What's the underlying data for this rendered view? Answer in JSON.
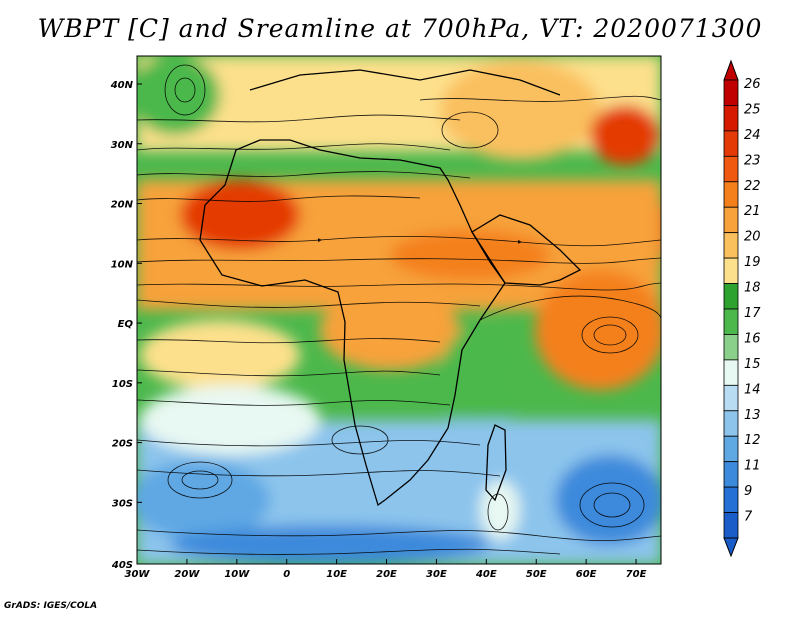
{
  "title": "WBPT [C] and Sreamline at 700hPa, VT: 2020071300",
  "credit": "GrADS: IGES/COLA",
  "map": {
    "lon_range": [
      -30,
      75
    ],
    "lat_range": [
      -40,
      45
    ],
    "lon_ticks": [
      "30W",
      "20W",
      "10W",
      "0",
      "10E",
      "20E",
      "30E",
      "40E",
      "50E",
      "60E",
      "70E"
    ],
    "lat_ticks": [
      "40N",
      "30N",
      "20N",
      "10N",
      "EQ",
      "10S",
      "20S",
      "30S",
      "40S"
    ]
  },
  "colorbar": {
    "labels": [
      "26",
      "25",
      "24",
      "23",
      "22",
      "21",
      "20",
      "19",
      "18",
      "17",
      "16",
      "15",
      "14",
      "13",
      "12",
      "11",
      "9",
      "7"
    ],
    "colors": [
      "#c00000",
      "#d51a00",
      "#e43a05",
      "#f05a10",
      "#f4801c",
      "#f7a23a",
      "#fac05e",
      "#fde08c",
      "#2ea22e",
      "#4cb84c",
      "#8ad08a",
      "#e8f8f2",
      "#b8dcf2",
      "#8cc4ec",
      "#5ea8e4",
      "#3c8adc",
      "#2470d4",
      "#1a5cc8"
    ]
  },
  "regions": [
    {
      "name": "north-africa-interior",
      "color": "#fde08c"
    },
    {
      "name": "sahel-band",
      "color": "#f7a23a"
    },
    {
      "name": "arabian-peak",
      "color": "#e43a05"
    },
    {
      "name": "south-atlantic",
      "color": "#5ea8e4"
    },
    {
      "name": "south-indian",
      "color": "#3c8adc"
    }
  ]
}
